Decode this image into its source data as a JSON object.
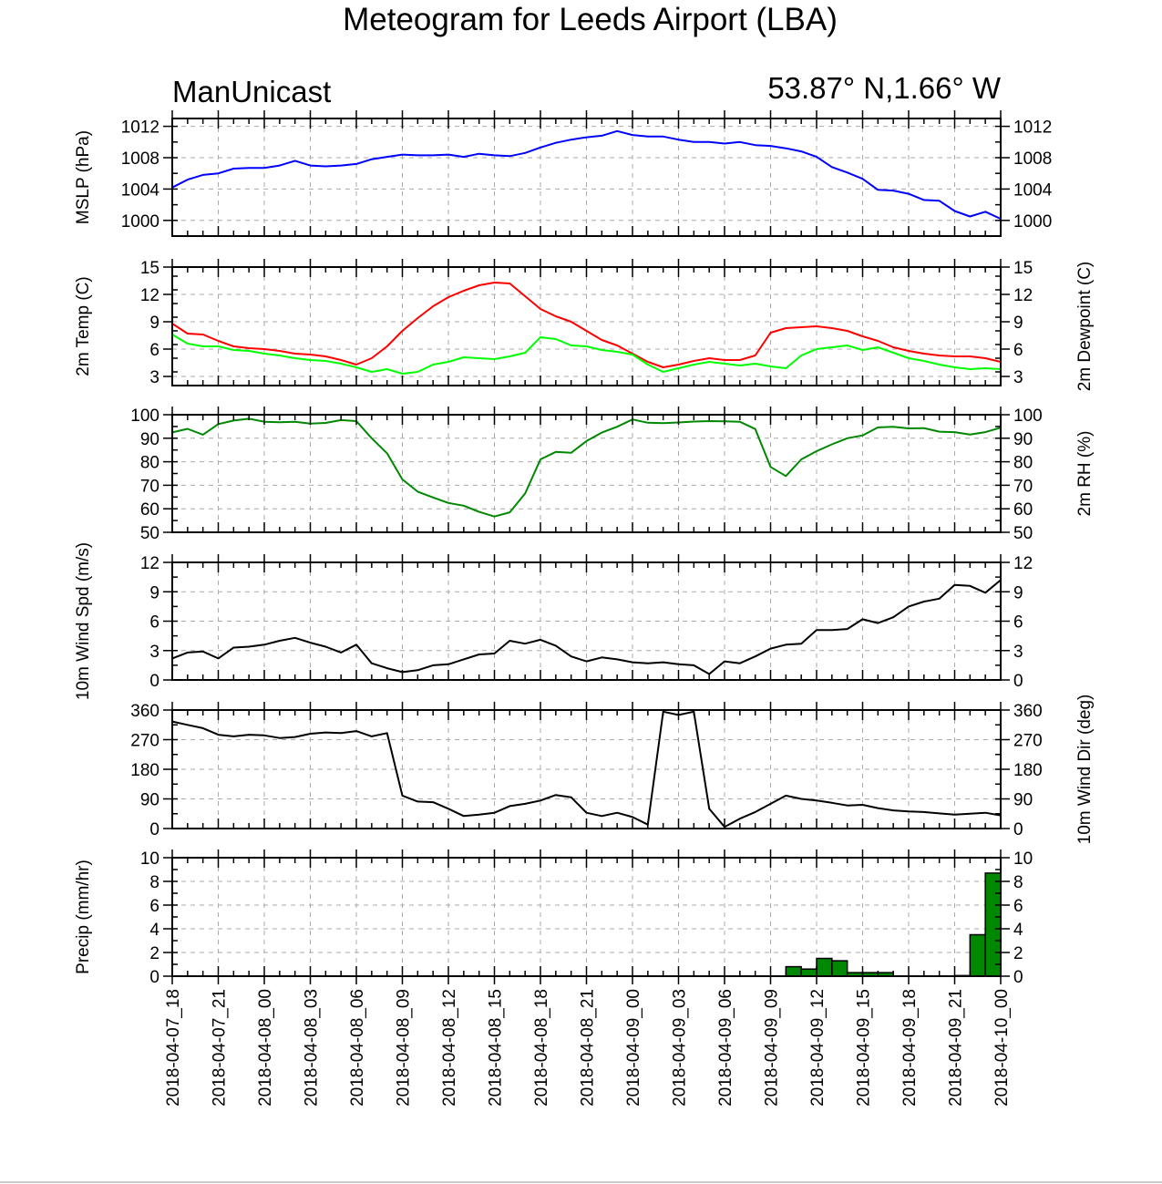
{
  "title": "Meteogram for Leeds Airport (LBA)",
  "model_label": "ManUnicast",
  "location_label": "53.87° N,1.66° W",
  "chart_data": {
    "type": "line",
    "x_labels": [
      "2018-04-07_18",
      "2018-04-07_21",
      "2018-04-08_00",
      "2018-04-08_03",
      "2018-04-08_06",
      "2018-04-08_09",
      "2018-04-08_12",
      "2018-04-08_15",
      "2018-04-08_18",
      "2018-04-08_21",
      "2018-04-09_00",
      "2018-04-09_03",
      "2018-04-09_06",
      "2018-04-09_09",
      "2018-04-09_12",
      "2018-04-09_15",
      "2018-04-09_18",
      "2018-04-09_21",
      "2018-04-10_00"
    ],
    "x_range_hours": [
      0,
      54
    ],
    "grid": true,
    "panels": [
      {
        "key": "mslp",
        "ylabel_left": "MSLP (hPa)",
        "ylabel_right": "",
        "ylim": [
          998,
          1013
        ],
        "ticks_left": [
          "1012",
          "1008",
          "1004",
          "1000"
        ],
        "ticks_right": [
          "1012",
          "1008",
          "1004",
          "1000"
        ],
        "tick_values": [
          1012,
          1008,
          1004,
          1000
        ],
        "series": [
          {
            "color": "#0000ff",
            "type": "line",
            "x": [
              0,
              1,
              2,
              3,
              4,
              5,
              6,
              7,
              8,
              9,
              10,
              11,
              12,
              13,
              14,
              15,
              16,
              17,
              18,
              19,
              20,
              21,
              22,
              23,
              24,
              25,
              26,
              27,
              28,
              29,
              30,
              31,
              32,
              33,
              34,
              35,
              36,
              37,
              38,
              39,
              40,
              41,
              42,
              43,
              44,
              45,
              46,
              47,
              48,
              49,
              50,
              51,
              52,
              53,
              54
            ],
            "y": [
              1004.2,
              1005.2,
              1005.8,
              1006.0,
              1006.6,
              1006.7,
              1006.7,
              1007.0,
              1007.6,
              1007.0,
              1006.9,
              1007.0,
              1007.2,
              1007.8,
              1008.1,
              1008.4,
              1008.3,
              1008.3,
              1008.4,
              1008.1,
              1008.5,
              1008.3,
              1008.2,
              1008.6,
              1009.3,
              1009.9,
              1010.3,
              1010.6,
              1010.8,
              1011.4,
              1010.9,
              1010.7,
              1010.7,
              1010.3,
              1010.0,
              1010.0,
              1009.8,
              1010.0,
              1009.6,
              1009.5,
              1009.2,
              1008.8,
              1008.1,
              1006.8,
              1006.1,
              1005.3,
              1003.9,
              1003.8,
              1003.4,
              1002.6,
              1002.5,
              1001.2,
              1000.5,
              1001.1,
              1000.2
            ]
          }
        ]
      },
      {
        "key": "temp",
        "ylabel_left": "2m Temp (C)",
        "ylabel_right": "2m Dewpoint (C)",
        "ylim": [
          2,
          15
        ],
        "ticks_left": [
          "15",
          "12",
          "9",
          "6",
          "3"
        ],
        "ticks_right": [
          "15",
          "12",
          "9",
          "6",
          "3"
        ],
        "tick_values": [
          15,
          12,
          9,
          6,
          3
        ],
        "series": [
          {
            "color": "#ff0000",
            "type": "line",
            "x": [
              0,
              1,
              2,
              3,
              4,
              5,
              6,
              7,
              8,
              9,
              10,
              11,
              12,
              13,
              14,
              15,
              16,
              17,
              18,
              19,
              20,
              21,
              22,
              23,
              24,
              25,
              26,
              27,
              28,
              29,
              30,
              31,
              32,
              33,
              34,
              35,
              36,
              37,
              38,
              39,
              40,
              41,
              42,
              43,
              44,
              45,
              46,
              47,
              48,
              49,
              50,
              51,
              52,
              53,
              54
            ],
            "y": [
              8.8,
              7.7,
              7.6,
              6.9,
              6.3,
              6.1,
              6.0,
              5.8,
              5.5,
              5.4,
              5.2,
              4.8,
              4.3,
              5.0,
              6.3,
              8.0,
              9.4,
              10.7,
              11.7,
              12.4,
              13.0,
              13.3,
              13.2,
              11.8,
              10.4,
              9.6,
              9.0,
              8.0,
              7.0,
              6.4,
              5.5,
              4.6,
              4.0,
              4.3,
              4.7,
              5.0,
              4.8,
              4.8,
              5.3,
              7.8,
              8.3,
              8.4,
              8.5,
              8.3,
              8.0,
              7.4,
              6.9,
              6.2,
              5.8,
              5.5,
              5.3,
              5.2,
              5.2,
              5.0,
              4.6
            ]
          },
          {
            "color": "#00ff00",
            "type": "line",
            "x": [
              0,
              1,
              2,
              3,
              4,
              5,
              6,
              7,
              8,
              9,
              10,
              11,
              12,
              13,
              14,
              15,
              16,
              17,
              18,
              19,
              20,
              21,
              22,
              23,
              24,
              25,
              26,
              27,
              28,
              29,
              30,
              31,
              32,
              33,
              34,
              35,
              36,
              37,
              38,
              39,
              40,
              41,
              42,
              43,
              44,
              45,
              46,
              47,
              48,
              49,
              50,
              51,
              52,
              53,
              54
            ],
            "y": [
              7.6,
              6.6,
              6.3,
              6.3,
              5.9,
              5.8,
              5.5,
              5.3,
              5.0,
              4.8,
              4.7,
              4.4,
              4.0,
              3.5,
              3.8,
              3.3,
              3.5,
              4.3,
              4.6,
              5.1,
              5.0,
              4.9,
              5.2,
              5.6,
              7.3,
              7.1,
              6.4,
              6.3,
              5.9,
              5.7,
              5.4,
              4.3,
              3.5,
              3.9,
              4.3,
              4.6,
              4.4,
              4.2,
              4.4,
              4.1,
              3.9,
              5.3,
              6.0,
              6.2,
              6.4,
              5.9,
              6.2,
              5.6,
              5.0,
              4.7,
              4.3,
              4.0,
              3.8,
              3.9,
              3.8
            ]
          }
        ]
      },
      {
        "key": "rh",
        "ylabel_left": "",
        "ylabel_right": "2m RH (%)",
        "ylim": [
          50,
          100
        ],
        "ticks_left": [
          "100",
          "90",
          "80",
          "70",
          "60",
          "50"
        ],
        "ticks_right": [
          "100",
          "90",
          "80",
          "70",
          "60",
          "50"
        ],
        "tick_values": [
          100,
          90,
          80,
          70,
          60,
          50
        ],
        "series": [
          {
            "color": "#008800",
            "type": "line",
            "x": [
              0,
              1,
              2,
              3,
              4,
              5,
              6,
              7,
              8,
              9,
              10,
              11,
              12,
              13,
              14,
              15,
              16,
              17,
              18,
              19,
              20,
              21,
              22,
              23,
              24,
              25,
              26,
              27,
              28,
              29,
              30,
              31,
              32,
              33,
              34,
              35,
              36,
              37,
              38,
              39,
              40,
              41,
              42,
              43,
              44,
              45,
              46,
              47,
              48,
              49,
              50,
              51,
              52,
              53,
              54
            ],
            "y": [
              92.5,
              94.0,
              91.5,
              96.0,
              97.5,
              98.3,
              97.0,
              96.8,
              97.0,
              96.2,
              96.5,
              97.7,
              97.3,
              90.0,
              83.6,
              72.5,
              67.3,
              64.8,
              62.5,
              61.3,
              58.7,
              56.7,
              58.5,
              66.5,
              81.0,
              84.2,
              83.8,
              88.8,
              92.4,
              94.9,
              98.0,
              96.6,
              96.4,
              96.7,
              97.1,
              97.3,
              97.2,
              97.0,
              93.9,
              77.8,
              73.9,
              81.0,
              84.5,
              87.4,
              90.0,
              91.2,
              94.6,
              94.9,
              94.2,
              94.3,
              92.8,
              92.6,
              91.6,
              92.6,
              94.5
            ]
          }
        ]
      },
      {
        "key": "wspd",
        "ylabel_left": "10m Wind Spd (m/s)",
        "ylabel_right": "",
        "ylim": [
          0,
          12
        ],
        "ticks_left": [
          "12",
          "9",
          "6",
          "3",
          "0"
        ],
        "ticks_right": [
          "12",
          "9",
          "6",
          "3",
          "0"
        ],
        "tick_values": [
          12,
          9,
          6,
          3,
          0
        ],
        "series": [
          {
            "color": "#000000",
            "type": "line",
            "x": [
              0,
              1,
              2,
              3,
              4,
              5,
              6,
              7,
              8,
              9,
              10,
              11,
              12,
              13,
              14,
              15,
              16,
              17,
              18,
              19,
              20,
              21,
              22,
              23,
              24,
              25,
              26,
              27,
              28,
              29,
              30,
              31,
              32,
              33,
              34,
              35,
              36,
              37,
              38,
              39,
              40,
              41,
              42,
              43,
              44,
              45,
              46,
              47,
              48,
              49,
              50,
              51,
              52,
              53,
              54
            ],
            "y": [
              2.2,
              2.8,
              2.9,
              2.2,
              3.3,
              3.4,
              3.6,
              4.0,
              4.3,
              3.8,
              3.4,
              2.8,
              3.6,
              1.7,
              1.2,
              0.8,
              1.0,
              1.5,
              1.6,
              2.1,
              2.6,
              2.7,
              4.0,
              3.7,
              4.1,
              3.5,
              2.4,
              1.9,
              2.3,
              2.1,
              1.8,
              1.7,
              1.8,
              1.6,
              1.5,
              0.6,
              1.9,
              1.7,
              2.4,
              3.2,
              3.6,
              3.7,
              5.1,
              5.1,
              5.2,
              6.2,
              5.8,
              6.4,
              7.5,
              8.0,
              8.3,
              9.7,
              9.6,
              8.9,
              10.2
            ]
          }
        ]
      },
      {
        "key": "wdir",
        "ylabel_left": "",
        "ylabel_right": "10m Wind Dir (deg)",
        "ylim": [
          0,
          360
        ],
        "ticks_left": [
          "360",
          "270",
          "180",
          "90",
          "0"
        ],
        "ticks_right": [
          "360",
          "270",
          "180",
          "90",
          "0"
        ],
        "tick_values": [
          360,
          270,
          180,
          90,
          0
        ],
        "series": [
          {
            "color": "#000000",
            "type": "line",
            "x": [
              0,
              1,
              2,
              3,
              4,
              5,
              6,
              7,
              8,
              9,
              10,
              11,
              12,
              13,
              14,
              15,
              16,
              17,
              18,
              19,
              20,
              21,
              22,
              23,
              24,
              25,
              26,
              27,
              28,
              29,
              30,
              31,
              32,
              33,
              34,
              35,
              36,
              37,
              38,
              39,
              40,
              41,
              42,
              43,
              44,
              45,
              46,
              47,
              48,
              49,
              50,
              51,
              52,
              53,
              54
            ],
            "y": [
              325,
              315,
              305,
              285,
              280,
              285,
              283,
              275,
              278,
              288,
              292,
              290,
              296,
              280,
              290,
              100,
              82,
              80,
              60,
              38,
              42,
              48,
              68,
              75,
              85,
              102,
              95,
              48,
              38,
              48,
              35,
              12,
              355,
              345,
              355,
              60,
              5,
              30,
              50,
              75,
              100,
              90,
              85,
              78,
              70,
              72,
              62,
              55,
              52,
              50,
              46,
              42,
              45,
              48,
              40
            ]
          }
        ]
      },
      {
        "key": "precip",
        "ylabel_left": "Precip (mm/hr)",
        "ylabel_right": "",
        "ylim": [
          0,
          10
        ],
        "ticks_left": [
          "10",
          "8",
          "6",
          "4",
          "2",
          "0"
        ],
        "ticks_right": [
          "10",
          "8",
          "6",
          "4",
          "2",
          "0"
        ],
        "tick_values": [
          10,
          8,
          6,
          4,
          2,
          0
        ],
        "series": [
          {
            "color": "#008800",
            "type": "bar",
            "x": [
              40,
              41,
              42,
              43,
              44,
              45,
              46,
              51,
              52,
              53
            ],
            "y": [
              0.8,
              0.6,
              1.5,
              1.3,
              0.3,
              0.3,
              0.3,
              0.05,
              3.5,
              8.7
            ]
          }
        ]
      }
    ]
  }
}
